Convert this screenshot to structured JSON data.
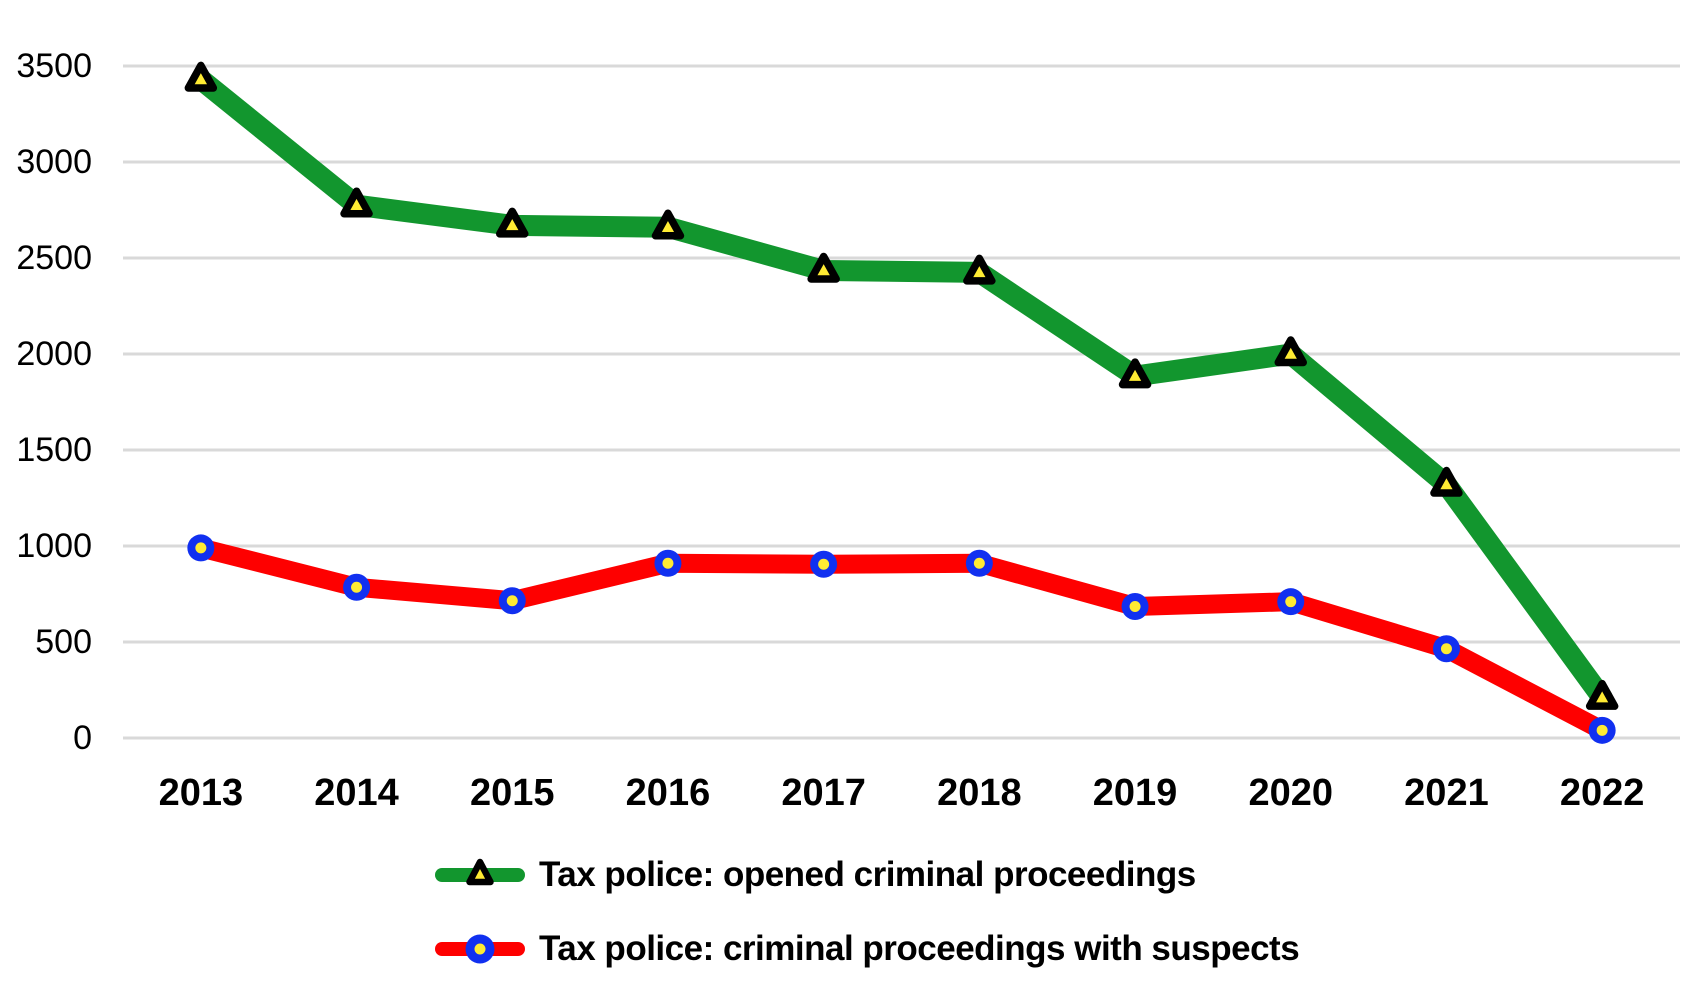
{
  "chart_data": {
    "type": "line",
    "categories": [
      "2013",
      "2014",
      "2015",
      "2016",
      "2017",
      "2018",
      "2019",
      "2020",
      "2021",
      "2022"
    ],
    "series": [
      {
        "name": "Tax police: opened criminal proceedings",
        "values": [
          3430,
          2775,
          2670,
          2660,
          2435,
          2425,
          1885,
          2000,
          1320,
          210
        ],
        "line_color": "#12962E",
        "marker": "triangle",
        "marker_fill": "#FFEB33",
        "marker_stroke": "#000000"
      },
      {
        "name": "Tax police: criminal proceedings with suspects",
        "values": [
          990,
          785,
          715,
          910,
          905,
          910,
          685,
          710,
          465,
          40
        ],
        "line_color": "#FE0000",
        "marker": "circle",
        "marker_fill": "#1130F0",
        "marker_dot": "#FFEB33"
      }
    ],
    "ylim": [
      0,
      3500
    ],
    "yticks": [
      0,
      500,
      1000,
      1500,
      2000,
      2500,
      3000,
      3500
    ],
    "grid": "horizontal",
    "gridline_color": "#D9D9D9",
    "legend_position": "bottom",
    "text_color": "#000000",
    "background": "#FFFFFF"
  }
}
